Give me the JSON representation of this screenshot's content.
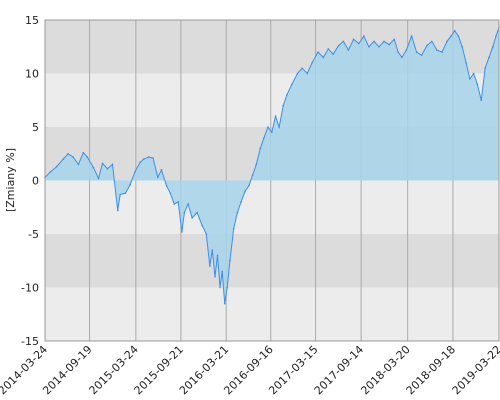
{
  "chart_data": {
    "type": "area",
    "title": "",
    "xlabel": "",
    "ylabel": "[Zmiany %]",
    "x_ticks": [
      "2014-03-24",
      "2014-09-19",
      "2015-03-24",
      "2015-09-21",
      "2016-03-21",
      "2016-09-16",
      "2017-03-15",
      "2017-09-14",
      "2018-03-20",
      "2018-09-18",
      "2019-03-22"
    ],
    "y_ticks": [
      -15,
      -10,
      -5,
      0,
      5,
      10,
      15
    ],
    "ylim": [
      -15,
      15
    ],
    "xlim": [
      "2014-03-24",
      "2019-03-22"
    ],
    "grid": "vertical lines at x ticks; alternating horizontal bands",
    "colors": {
      "line": "#3d8ee6",
      "fill": "#a6d5ea",
      "band_dark": "#dcdcdc",
      "band_light": "#ececec",
      "gridline": "#aaaaaa"
    },
    "series": [
      {
        "x": [
          "2014-03-24",
          "2014-04-15",
          "2014-05-10",
          "2014-06-05",
          "2014-06-25",
          "2014-07-15",
          "2014-08-05",
          "2014-08-25",
          "2014-09-10",
          "2014-10-05",
          "2014-10-25",
          "2014-11-10",
          "2014-11-30",
          "2014-12-20",
          "2015-01-10",
          "2015-01-20",
          "2015-02-10",
          "2015-03-01",
          "2015-03-20",
          "2015-04-10",
          "2015-04-25",
          "2015-05-15",
          "2015-06-01",
          "2015-06-20",
          "2015-07-05",
          "2015-07-25",
          "2015-08-10",
          "2015-08-25",
          "2015-09-10",
          "2015-09-25",
          "2015-10-05",
          "2015-10-20",
          "2015-11-05",
          "2015-11-25",
          "2015-12-15",
          "2016-01-01",
          "2016-01-15",
          "2016-01-25",
          "2016-02-05",
          "2016-02-15",
          "2016-02-25",
          "2016-03-05",
          "2016-03-15",
          "2016-03-25",
          "2016-04-05",
          "2016-04-20",
          "2016-05-05",
          "2016-05-20",
          "2016-06-05",
          "2016-06-20",
          "2016-07-05",
          "2016-07-20",
          "2016-08-05",
          "2016-08-20",
          "2016-09-05",
          "2016-09-20",
          "2016-10-05",
          "2016-10-20",
          "2016-11-05",
          "2016-11-20",
          "2016-12-10",
          "2017-01-01",
          "2017-01-20",
          "2017-02-10",
          "2017-03-01",
          "2017-03-25",
          "2017-04-15",
          "2017-05-05",
          "2017-05-25",
          "2017-06-15",
          "2017-07-05",
          "2017-07-25",
          "2017-08-15",
          "2017-09-05",
          "2017-09-25",
          "2017-10-15",
          "2017-11-05",
          "2017-11-25",
          "2017-12-15",
          "2018-01-05",
          "2018-01-25",
          "2018-02-10",
          "2018-02-25",
          "2018-03-15",
          "2018-04-05",
          "2018-04-25",
          "2018-05-15",
          "2018-06-05",
          "2018-06-25",
          "2018-07-15",
          "2018-08-05",
          "2018-08-25",
          "2018-09-10",
          "2018-09-25",
          "2018-10-10",
          "2018-10-25",
          "2018-11-10",
          "2018-11-25",
          "2018-12-10",
          "2018-12-25",
          "2019-01-10",
          "2019-01-25",
          "2019-02-10",
          "2019-02-25",
          "2019-03-10",
          "2019-03-22"
        ],
        "values": [
          0.3,
          0.8,
          1.3,
          2.0,
          2.5,
          2.2,
          1.5,
          2.6,
          2.2,
          1.2,
          0.2,
          1.6,
          1.1,
          1.5,
          -2.8,
          -1.3,
          -1.2,
          -0.4,
          0.8,
          1.7,
          2.0,
          2.2,
          2.1,
          0.3,
          1.0,
          -0.5,
          -1.2,
          -2.2,
          -2.0,
          -4.8,
          -3.0,
          -2.2,
          -3.5,
          -3.0,
          -4.2,
          -5.0,
          -8.0,
          -6.5,
          -9.0,
          -7.0,
          -10.0,
          -8.5,
          -11.5,
          -10.0,
          -7.5,
          -4.5,
          -3.0,
          -2.0,
          -1.0,
          -0.5,
          0.5,
          1.5,
          3.0,
          4.0,
          5.0,
          4.5,
          6.0,
          5.0,
          7.0,
          8.0,
          9.0,
          10.0,
          10.5,
          10.0,
          11.0,
          12.0,
          11.5,
          12.3,
          11.8,
          12.6,
          13.0,
          12.2,
          13.2,
          12.8,
          13.5,
          12.5,
          13.0,
          12.5,
          13.0,
          12.7,
          13.2,
          12.0,
          11.5,
          12.2,
          13.5,
          12.0,
          11.7,
          12.6,
          13.0,
          12.2,
          12.0,
          13.0,
          13.5,
          14.0,
          13.5,
          12.5,
          11.0,
          9.5,
          10.0,
          9.0,
          7.5,
          10.5,
          11.5,
          12.5,
          13.5,
          14.3
        ]
      }
    ]
  }
}
